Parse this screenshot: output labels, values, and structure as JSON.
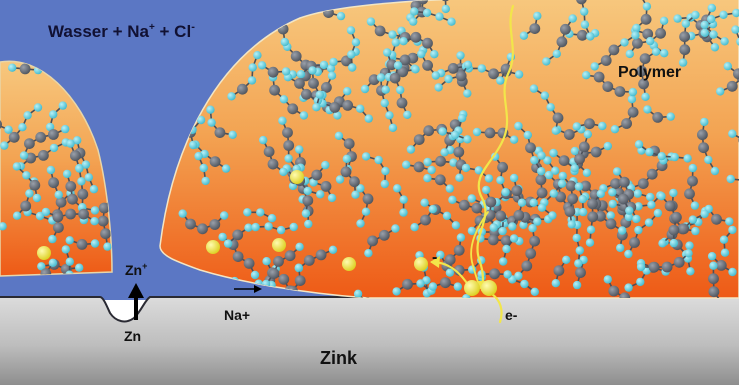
{
  "labels": {
    "solution": "Wasser + Na",
    "solution_sup": "+",
    "solution_mid": " + Cl",
    "solution_sup2": "-",
    "polymer": "Polymer",
    "zn_ion": "Zn",
    "zn_ion_sup": "+",
    "zn": "Zn",
    "na_plus": "Na+",
    "electron": "e-",
    "minus": "-",
    "zink": "Zink"
  },
  "colors": {
    "water": "#5b77c4",
    "zinc_top": "#d9d9d9",
    "zinc_bottom": "#8f8f8f",
    "polymer_top": "#f6c27a",
    "polymer_bottom": "#ee5a16",
    "atom_dark": "#6d7480",
    "atom_light": "#66d3e2",
    "ion": "#f2ea4a",
    "electron_path": "#f2e64a"
  }
}
